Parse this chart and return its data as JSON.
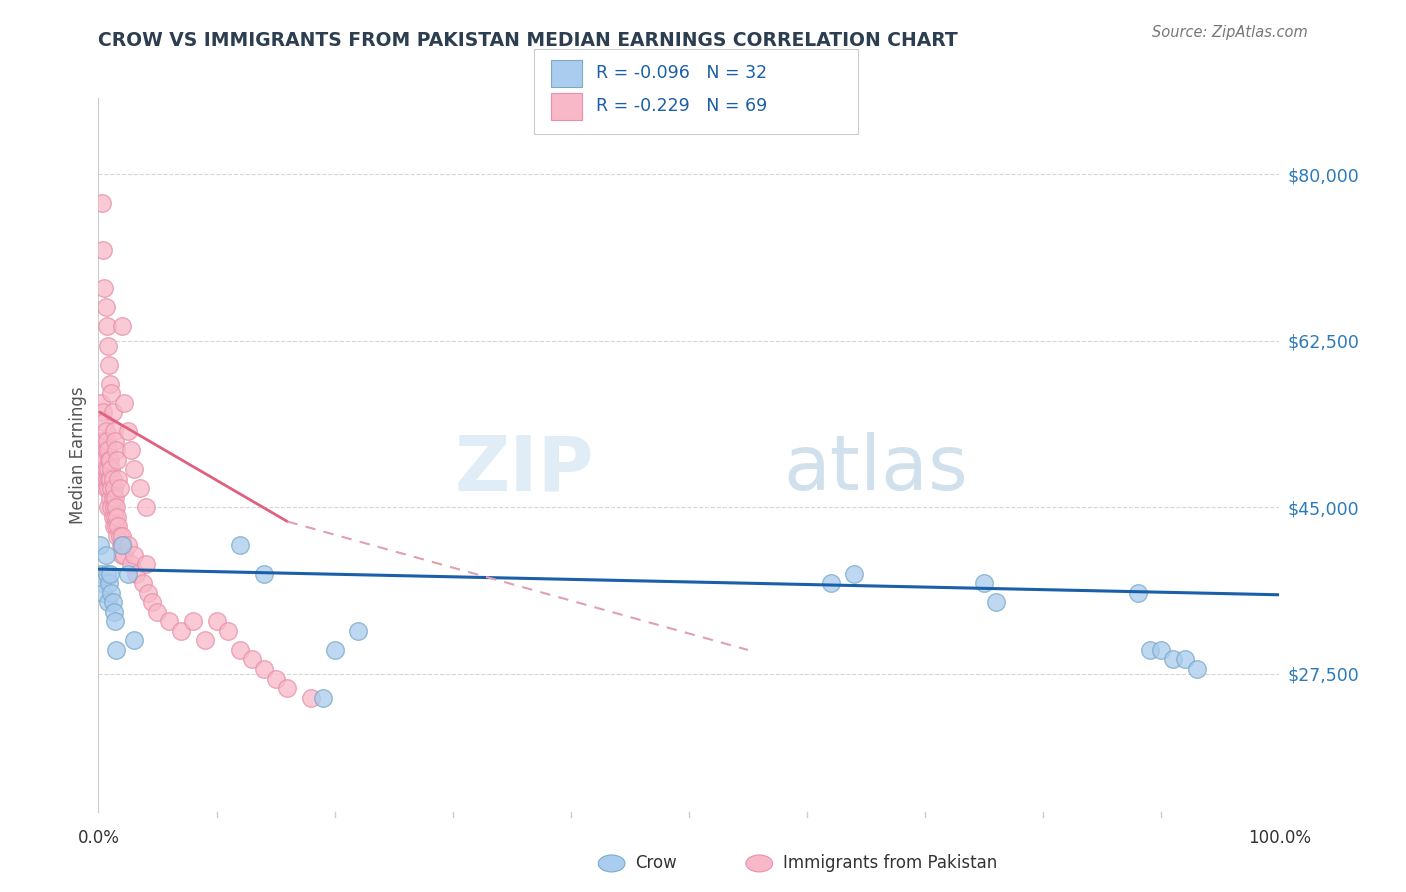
{
  "title": "CROW VS IMMIGRANTS FROM PAKISTAN MEDIAN EARNINGS CORRELATION CHART",
  "source": "Source: ZipAtlas.com",
  "ylabel": "Median Earnings",
  "watermark_zip": "ZIP",
  "watermark_atlas": "atlas",
  "legend": {
    "crow": {
      "R": "-0.096",
      "N": "32",
      "face_color": "#aaccee",
      "edge_color": "#7aaac8",
      "line_color": "#1a5fa8"
    },
    "pakistan": {
      "R": "-0.229",
      "N": "69",
      "face_color": "#f8b8c8",
      "edge_color": "#e890a8",
      "line_color": "#e06080"
    }
  },
  "y_ticks": [
    27500,
    45000,
    62500,
    80000
  ],
  "y_tick_labels": [
    "$27,500",
    "$45,000",
    "$62,500",
    "$80,000"
  ],
  "x_range": [
    0.0,
    1.0
  ],
  "y_range": [
    13000,
    88000
  ],
  "background_color": "#ffffff",
  "grid_color": "#cccccc",
  "crow_scatter_x": [
    0.001,
    0.002,
    0.003,
    0.004,
    0.006,
    0.007,
    0.008,
    0.009,
    0.01,
    0.011,
    0.012,
    0.013,
    0.014,
    0.015,
    0.02,
    0.025,
    0.03,
    0.12,
    0.14,
    0.19,
    0.2,
    0.22,
    0.62,
    0.64,
    0.75,
    0.76,
    0.88,
    0.89,
    0.9,
    0.91,
    0.92,
    0.93
  ],
  "crow_scatter_y": [
    41000,
    38000,
    37000,
    36000,
    40000,
    38000,
    35000,
    37000,
    38000,
    36000,
    35000,
    34000,
    33000,
    30000,
    41000,
    38000,
    31000,
    41000,
    38000,
    25000,
    30000,
    32000,
    37000,
    38000,
    37000,
    35000,
    36000,
    30000,
    30000,
    29000,
    29000,
    28000
  ],
  "pakistan_scatter_x": [
    0.002,
    0.002,
    0.003,
    0.003,
    0.004,
    0.004,
    0.004,
    0.005,
    0.005,
    0.005,
    0.006,
    0.006,
    0.006,
    0.006,
    0.007,
    0.007,
    0.008,
    0.008,
    0.008,
    0.008,
    0.009,
    0.009,
    0.01,
    0.01,
    0.01,
    0.011,
    0.011,
    0.011,
    0.012,
    0.012,
    0.012,
    0.013,
    0.013,
    0.013,
    0.014,
    0.014,
    0.015,
    0.015,
    0.016,
    0.016,
    0.017,
    0.018,
    0.019,
    0.02,
    0.02,
    0.021,
    0.022,
    0.025,
    0.028,
    0.03,
    0.032,
    0.038,
    0.04,
    0.042,
    0.045,
    0.05,
    0.06,
    0.07,
    0.08,
    0.09,
    0.1,
    0.11,
    0.12,
    0.13,
    0.14,
    0.15,
    0.16,
    0.18
  ],
  "pakistan_scatter_y": [
    56000,
    51000,
    52000,
    50000,
    55000,
    52000,
    49000,
    54000,
    50000,
    48000,
    53000,
    51000,
    49000,
    47000,
    52000,
    48000,
    51000,
    49000,
    47000,
    45000,
    50000,
    48000,
    50000,
    48000,
    46000,
    49000,
    47000,
    45000,
    48000,
    46000,
    44000,
    47000,
    45000,
    43000,
    46000,
    44000,
    45000,
    43000,
    44000,
    42000,
    43000,
    42000,
    41000,
    42000,
    40000,
    41000,
    40000,
    41000,
    39000,
    40000,
    38000,
    37000,
    39000,
    36000,
    35000,
    34000,
    33000,
    32000,
    33000,
    31000,
    33000,
    32000,
    30000,
    29000,
    28000,
    27000,
    26000,
    25000
  ],
  "pakistan_high_x": [
    0.003,
    0.004,
    0.005,
    0.006,
    0.007,
    0.008,
    0.009,
    0.01,
    0.011,
    0.012,
    0.013,
    0.014,
    0.015,
    0.016,
    0.017,
    0.018,
    0.02,
    0.022,
    0.025,
    0.028,
    0.03,
    0.035,
    0.04
  ],
  "pakistan_high_y": [
    77000,
    72000,
    68000,
    66000,
    64000,
    62000,
    60000,
    58000,
    57000,
    55000,
    53000,
    52000,
    51000,
    50000,
    48000,
    47000,
    64000,
    56000,
    53000,
    51000,
    49000,
    47000,
    45000
  ],
  "crow_line_x": [
    0.0,
    1.0
  ],
  "crow_line_y": [
    38500,
    35800
  ],
  "pakistan_solid_line_x": [
    0.001,
    0.16
  ],
  "pakistan_solid_line_y": [
    55000,
    43500
  ],
  "pakistan_dashed_line_x": [
    0.16,
    0.55
  ],
  "pakistan_dashed_line_y": [
    43500,
    30000
  ]
}
